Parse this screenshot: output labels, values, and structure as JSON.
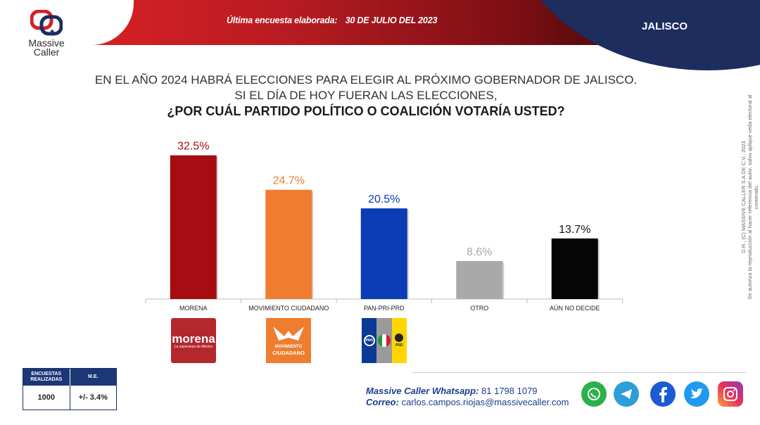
{
  "header": {
    "survey_label": "Última encuesta elaborada:",
    "survey_date": "30 DE JULIO DEL 2023",
    "state": "JALISCO"
  },
  "brand": {
    "line1": "Massive",
    "line2": "Caller"
  },
  "question": {
    "line1": "EN EL AÑO 2024 HABRÁ ELECCIONES PARA ELEGIR AL PRÓXIMO GOBERNADOR DE JALISCO.",
    "line2": "SI EL DÍA DE HOY FUERAN LAS ELECCIONES,",
    "line3": "¿POR CUÁL PARTIDO POLÍTICO O COALICIÓN VOTARÍA USTED?"
  },
  "chart_data": {
    "type": "bar",
    "categories": [
      "MORENA",
      "MOVIMIENTO CIUDADANO",
      "PAN-PRI-PRD",
      "OTRO",
      "AÚN NO DECIDE"
    ],
    "values": [
      32.5,
      24.7,
      20.5,
      8.6,
      13.7
    ],
    "value_labels": [
      "32.5%",
      "24.7%",
      "20.5%",
      "8.6%",
      "13.7%"
    ],
    "colors": [
      "#a50d12",
      "#ef7d2f",
      "#0b3bb5",
      "#a9a9a9",
      "#050505"
    ],
    "label_colors": [
      "#a50d12",
      "#ef7d2f",
      "#0b3bb5",
      "#a9a9a9",
      "#111111"
    ],
    "ylim": [
      0,
      35
    ],
    "grid": false
  },
  "party_logos": {
    "morena": {
      "name": "morena",
      "tagline": "La esperanza de México",
      "color": "#b3282d"
    },
    "mc": {
      "line1": "MOVIMIENTO",
      "line2": "CIUDADANO",
      "color": "#ef7d2f"
    },
    "coalition": {
      "pan": "PAN",
      "prd": "PRD",
      "colors": [
        "#0a3a96",
        "#9a9a9a",
        "#ffd500"
      ]
    }
  },
  "copyright": {
    "line1": "D.R., (C) MASSIVE CALLER S.A DE C.V., 2023",
    "line2": "Se autoriza la reproducción al hacer referencia del autor, salvo aplique veda electoral al contenido."
  },
  "stats_table": {
    "h1": "ENCUESTAS REALIZADAS",
    "h2": "M.E.",
    "v1": "1000",
    "v2": "+/- 3.4%"
  },
  "footer": {
    "whatsapp_label": "Massive Caller Whatsapp:",
    "whatsapp_number": "81 1798 1079",
    "email_label": "Correo:",
    "email": "carlos.campos.riojas@massivecaller.com"
  },
  "social": [
    "whatsapp-icon",
    "telegram-icon",
    "facebook-icon",
    "twitter-icon",
    "instagram-icon"
  ]
}
